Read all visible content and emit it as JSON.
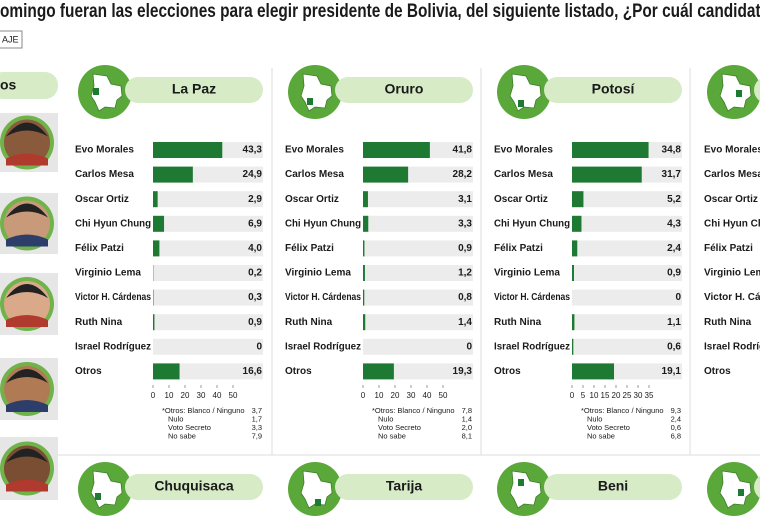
{
  "header": {
    "title": "omingo fueran las elecciones para elegir presidente de Bolivia, del siguiente listado, ¿Por cuál candidato",
    "unit_tag": "AJE"
  },
  "sidebar": {
    "label": "os"
  },
  "chart_data": [
    {
      "type": "bar",
      "title": "La Paz",
      "categories": [
        "Evo Morales",
        "Carlos Mesa",
        "Oscar Ortiz",
        "Chi Hyun Chung",
        "Félix Patzi",
        "Virginio Lema",
        "Victor H. Cárdenas",
        "Ruth Nina",
        "Israel Rodríguez",
        "Otros"
      ],
      "values": [
        43.3,
        24.9,
        2.9,
        6.9,
        4.0,
        0.2,
        0.3,
        0.9,
        0,
        16.6
      ],
      "value_labels": [
        "43,3",
        "24,9",
        "2,9",
        "6,9",
        "4,0",
        "0,2",
        "0,3",
        "0,9",
        "0",
        "16,6"
      ],
      "color": "#1e7a32",
      "xlim": [
        0,
        50
      ],
      "xticks": [
        0,
        10,
        20,
        30,
        40,
        50
      ],
      "notes": [
        {
          "label": "*Otros: Blanco / Ninguno",
          "value": "3,7"
        },
        {
          "label": "Nulo",
          "value": "1,7"
        },
        {
          "label": "Voto Secreto",
          "value": "3,3"
        },
        {
          "label": "No sabe",
          "value": "7,9"
        }
      ]
    },
    {
      "type": "bar",
      "title": "Oruro",
      "categories": [
        "Evo Morales",
        "Carlos Mesa",
        "Oscar Ortiz",
        "Chi Hyun Chung",
        "Félix Patzi",
        "Virginio Lema",
        "Victor H. Cárdenas",
        "Ruth Nina",
        "Israel Rodríguez",
        "Otros"
      ],
      "values": [
        41.8,
        28.2,
        3.1,
        3.3,
        0.9,
        1.2,
        0.8,
        1.4,
        0,
        19.3
      ],
      "value_labels": [
        "41,8",
        "28,2",
        "3,1",
        "3,3",
        "0,9",
        "1,2",
        "0,8",
        "1,4",
        "0",
        "19,3"
      ],
      "color": "#1e7a32",
      "xlim": [
        0,
        50
      ],
      "xticks": [
        0,
        10,
        20,
        30,
        40,
        50
      ],
      "notes": [
        {
          "label": "*Otros: Blanco / Ninguno",
          "value": "7,8"
        },
        {
          "label": "Nulo",
          "value": "1,4"
        },
        {
          "label": "Voto Secreto",
          "value": "2,0"
        },
        {
          "label": "No sabe",
          "value": "8,1"
        }
      ]
    },
    {
      "type": "bar",
      "title": "Potosí",
      "categories": [
        "Evo Morales",
        "Carlos Mesa",
        "Oscar Ortiz",
        "Chi Hyun Chung",
        "Félix Patzi",
        "Virginio Lema",
        "Victor H. Cárdenas",
        "Ruth Nina",
        "Israel Rodríguez",
        "Otros"
      ],
      "values": [
        34.8,
        31.7,
        5.2,
        4.3,
        2.4,
        0.9,
        0,
        1.1,
        0.6,
        19.1
      ],
      "value_labels": [
        "34,8",
        "31,7",
        "5,2",
        "4,3",
        "2,4",
        "0,9",
        "0",
        "1,1",
        "0,6",
        "19,1"
      ],
      "color": "#1e7a32",
      "xlim": [
        0,
        35
      ],
      "xticks": [
        0,
        5,
        10,
        15,
        20,
        25,
        30,
        35
      ],
      "notes": [
        {
          "label": "*Otros: Blanco / Ninguno",
          "value": "9,3"
        },
        {
          "label": "Nulo",
          "value": "2,4"
        },
        {
          "label": "Voto Secreto",
          "value": "0,6"
        },
        {
          "label": "No sabe",
          "value": "6,8"
        }
      ]
    },
    {
      "type": "bar",
      "categories": [
        "Evo Morales",
        "Carlos Mesa",
        "Oscar Ortiz",
        "Chi Hyun Chung",
        "Félix Patzi",
        "Virginio Lema",
        "Victor H. Cárdenas",
        "Ruth Nina",
        "Israel Rodríguez",
        "Otros"
      ]
    }
  ],
  "bottom_regions": [
    "Chuquisaca",
    "Tarija",
    "Beni"
  ]
}
